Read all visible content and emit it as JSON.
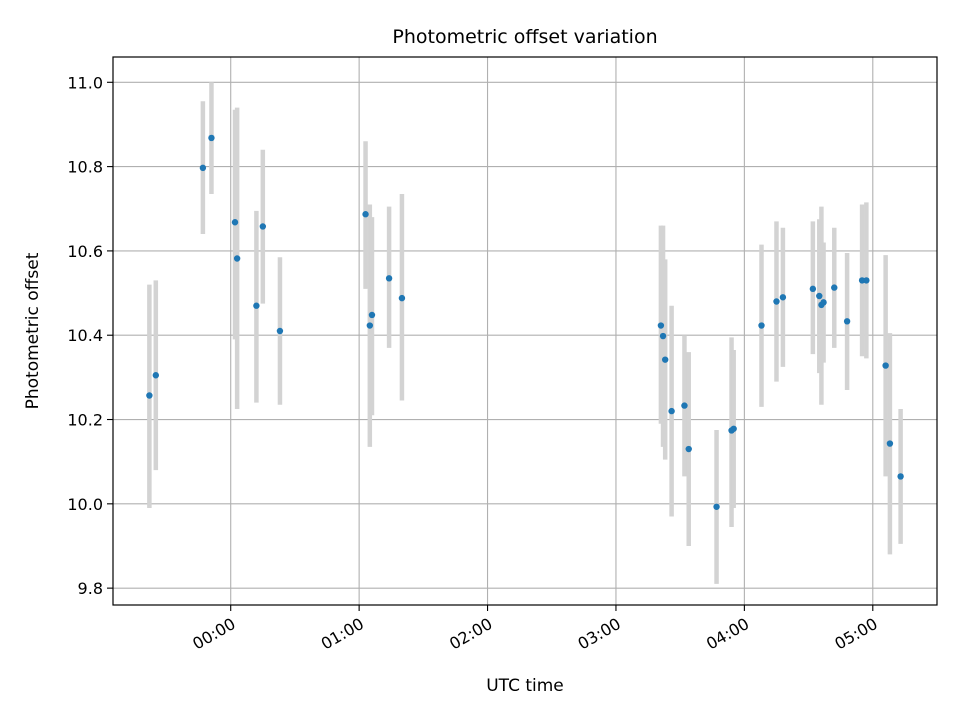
{
  "chart_data": {
    "type": "scatter",
    "title": "Photometric offset variation",
    "xlabel": "UTC time",
    "ylabel": "Photometric offset",
    "x_unit": "minutes_after_midnight",
    "xlim": [
      -55,
      330
    ],
    "ylim": [
      9.76,
      11.06
    ],
    "grid": true,
    "x_ticks": [
      {
        "value": 0,
        "label": "00:00"
      },
      {
        "value": 60,
        "label": "01:00"
      },
      {
        "value": 120,
        "label": "02:00"
      },
      {
        "value": 180,
        "label": "03:00"
      },
      {
        "value": 240,
        "label": "04:00"
      },
      {
        "value": 300,
        "label": "05:00"
      }
    ],
    "y_ticks": [
      {
        "value": 9.8,
        "label": "9.8"
      },
      {
        "value": 10.0,
        "label": "10.0"
      },
      {
        "value": 10.2,
        "label": "10.2"
      },
      {
        "value": 10.4,
        "label": "10.4"
      },
      {
        "value": 10.6,
        "label": "10.6"
      },
      {
        "value": 10.8,
        "label": "10.8"
      },
      {
        "value": 11.0,
        "label": "11.0"
      }
    ],
    "colors": {
      "point": "#1f77b4",
      "errorbar": "#d3d3d3",
      "grid": "#b0b0b0"
    },
    "points": [
      {
        "x": -38,
        "y": 10.257,
        "lo": 9.99,
        "hi": 10.52
      },
      {
        "x": -35,
        "y": 10.305,
        "lo": 10.08,
        "hi": 10.53
      },
      {
        "x": -13,
        "y": 10.797,
        "lo": 10.64,
        "hi": 10.955
      },
      {
        "x": -9,
        "y": 10.868,
        "lo": 10.735,
        "hi": 11.0
      },
      {
        "x": 2,
        "y": 10.668,
        "lo": 10.39,
        "hi": 10.935
      },
      {
        "x": 3,
        "y": 10.582,
        "lo": 10.225,
        "hi": 10.94
      },
      {
        "x": 12,
        "y": 10.47,
        "lo": 10.24,
        "hi": 10.695
      },
      {
        "x": 15,
        "y": 10.658,
        "lo": 10.475,
        "hi": 10.84
      },
      {
        "x": 23,
        "y": 10.41,
        "lo": 10.235,
        "hi": 10.585
      },
      {
        "x": 63,
        "y": 10.687,
        "lo": 10.51,
        "hi": 10.86
      },
      {
        "x": 65,
        "y": 10.423,
        "lo": 10.135,
        "hi": 10.71
      },
      {
        "x": 66,
        "y": 10.448,
        "lo": 10.21,
        "hi": 10.68
      },
      {
        "x": 74,
        "y": 10.535,
        "lo": 10.37,
        "hi": 10.705
      },
      {
        "x": 80,
        "y": 10.488,
        "lo": 10.245,
        "hi": 10.735
      },
      {
        "x": 201,
        "y": 10.423,
        "lo": 10.19,
        "hi": 10.66
      },
      {
        "x": 202,
        "y": 10.398,
        "lo": 10.135,
        "hi": 10.66
      },
      {
        "x": 203,
        "y": 10.342,
        "lo": 10.105,
        "hi": 10.58
      },
      {
        "x": 206,
        "y": 10.22,
        "lo": 9.97,
        "hi": 10.47
      },
      {
        "x": 212,
        "y": 10.233,
        "lo": 10.065,
        "hi": 10.4
      },
      {
        "x": 214,
        "y": 10.13,
        "lo": 9.9,
        "hi": 10.36
      },
      {
        "x": 227,
        "y": 9.993,
        "lo": 9.81,
        "hi": 10.175
      },
      {
        "x": 234,
        "y": 10.174,
        "lo": 9.945,
        "hi": 10.395
      },
      {
        "x": 235,
        "y": 10.178,
        "lo": 9.99,
        "hi": 10.365
      },
      {
        "x": 248,
        "y": 10.423,
        "lo": 10.23,
        "hi": 10.615
      },
      {
        "x": 255,
        "y": 10.48,
        "lo": 10.29,
        "hi": 10.67
      },
      {
        "x": 258,
        "y": 10.49,
        "lo": 10.325,
        "hi": 10.655
      },
      {
        "x": 272,
        "y": 10.51,
        "lo": 10.355,
        "hi": 10.67
      },
      {
        "x": 275,
        "y": 10.493,
        "lo": 10.31,
        "hi": 10.675
      },
      {
        "x": 276,
        "y": 10.472,
        "lo": 10.235,
        "hi": 10.705
      },
      {
        "x": 277,
        "y": 10.478,
        "lo": 10.335,
        "hi": 10.62
      },
      {
        "x": 282,
        "y": 10.513,
        "lo": 10.37,
        "hi": 10.655
      },
      {
        "x": 288,
        "y": 10.433,
        "lo": 10.27,
        "hi": 10.595
      },
      {
        "x": 295,
        "y": 10.53,
        "lo": 10.35,
        "hi": 10.71
      },
      {
        "x": 297,
        "y": 10.53,
        "lo": 10.345,
        "hi": 10.715
      },
      {
        "x": 306,
        "y": 10.328,
        "lo": 10.065,
        "hi": 10.59
      },
      {
        "x": 308,
        "y": 10.143,
        "lo": 9.88,
        "hi": 10.405
      },
      {
        "x": 313,
        "y": 10.065,
        "lo": 9.905,
        "hi": 10.225
      }
    ]
  }
}
